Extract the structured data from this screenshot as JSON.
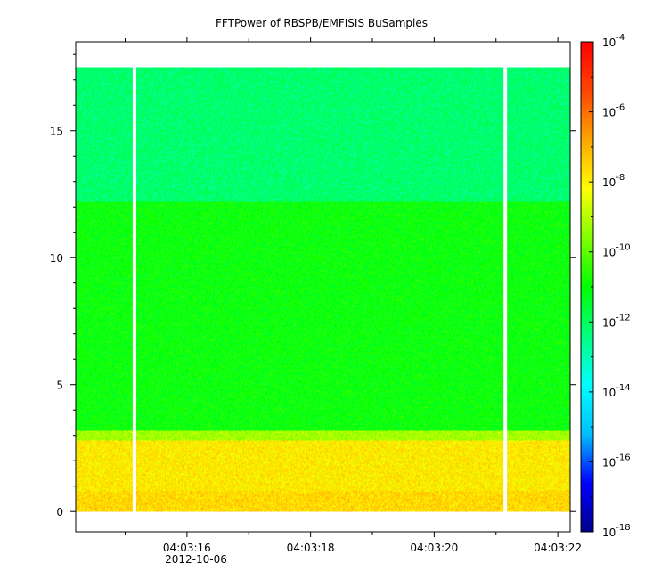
{
  "chart_data": {
    "type": "heatmap",
    "title": "FFTPower of RBSPB/EMFISIS  BuSamples",
    "xlabel": "",
    "ylabel": "",
    "x_tick_labels": [
      "04:03:16",
      "04:03:18",
      "04:03:20",
      "04:03:22"
    ],
    "x_tick_values_seconds": [
      16,
      18,
      20,
      22
    ],
    "x_date_label": "2012-10-06",
    "xlim_seconds": [
      14.2,
      22.2
    ],
    "ylim": [
      -0.8,
      18.5
    ],
    "y_ticks": [
      0,
      5,
      10,
      15
    ],
    "y_tick_labels": [
      "0",
      "5",
      "10",
      "15"
    ],
    "data_y_range": [
      0,
      17.5
    ],
    "data_x_range_seconds": [
      14.2,
      22.2
    ],
    "colorbar": {
      "scale": "log",
      "range": [
        1e-18,
        0.0001
      ],
      "tick_bases": [
        "10",
        "10",
        "10",
        "10",
        "10",
        "10",
        "10",
        "10"
      ],
      "tick_exponents": [
        "-4",
        "-6",
        "-8",
        "-10",
        "-12",
        "-14",
        "-16",
        "-18"
      ],
      "tick_values_log10": [
        -4,
        -6,
        -8,
        -10,
        -12,
        -14,
        -16,
        -18
      ],
      "colormap": [
        "#00008b",
        "#0000ff",
        "#00bfff",
        "#00ffff",
        "#00ff80",
        "#00ff00",
        "#80ff00",
        "#ffff00",
        "#ffa500",
        "#ff4500",
        "#ff0000"
      ]
    },
    "bands": [
      {
        "y_range": [
          0,
          0.8
        ],
        "log10_power": -7.6
      },
      {
        "y_range": [
          0.8,
          2.8
        ],
        "log10_power": -7.9
      },
      {
        "y_range": [
          2.8,
          3.2
        ],
        "log10_power": -9.2
      },
      {
        "y_range": [
          3.2,
          12.2
        ],
        "log10_power": -11.0
      },
      {
        "y_range": [
          12.2,
          17.5
        ],
        "log10_power": -12.2
      }
    ],
    "data_gaps_seconds": [
      15.15,
      21.15
    ],
    "colors": {
      "background": "#ffffff",
      "axis": "#000000"
    }
  }
}
